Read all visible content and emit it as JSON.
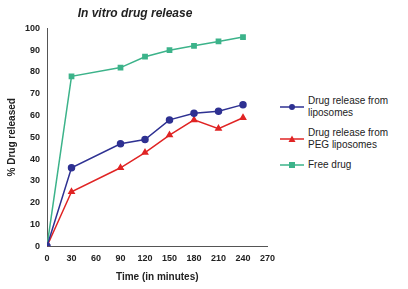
{
  "chart_data": {
    "type": "line",
    "title": "In vitro drug release",
    "x_label": "Time (in minutes)",
    "y_label": "% Drug released",
    "x": [
      0,
      30,
      90,
      120,
      150,
      180,
      210,
      240
    ],
    "series": [
      {
        "name": "Drug release from liposomes",
        "color": "#2e3192",
        "marker": "circle",
        "values": [
          0,
          36,
          47,
          49,
          58,
          61,
          62,
          65
        ]
      },
      {
        "name": "Drug release from PEG liposomes",
        "color": "#e02424",
        "marker": "triangle",
        "values": [
          0,
          25,
          36,
          43,
          51,
          58,
          54,
          59
        ]
      },
      {
        "name": "Free drug",
        "color": "#3cb38a",
        "marker": "square",
        "values": [
          0,
          78,
          82,
          87,
          90,
          92,
          94,
          96
        ]
      }
    ],
    "xlim": [
      0,
      270
    ],
    "xticks": [
      0,
      30,
      60,
      90,
      120,
      150,
      180,
      210,
      240,
      270
    ],
    "ylim": [
      0,
      100
    ],
    "yticks": [
      0,
      10,
      20,
      30,
      40,
      50,
      60,
      70,
      80,
      90,
      100
    ],
    "grid": false,
    "legend": "right"
  }
}
